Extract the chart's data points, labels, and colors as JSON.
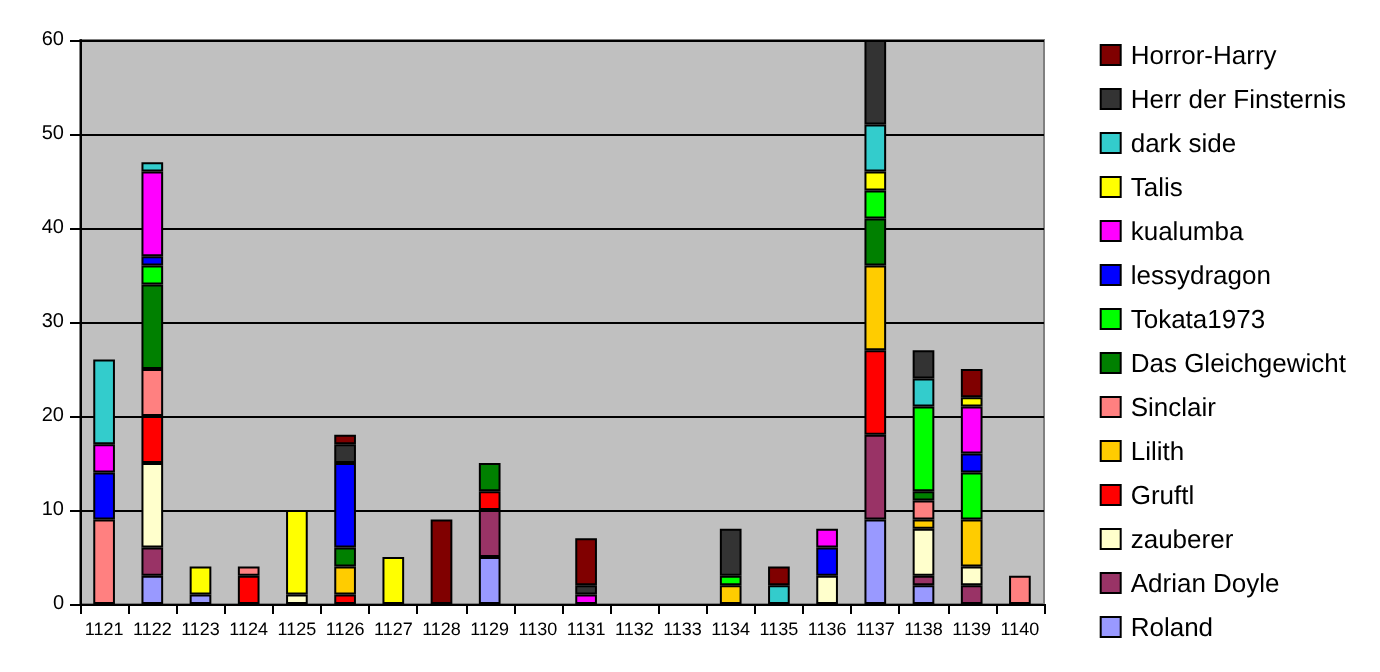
{
  "chart_data": {
    "type": "bar",
    "stacked": true,
    "categories": [
      "1121",
      "1122",
      "1123",
      "1124",
      "1125",
      "1126",
      "1127",
      "1128",
      "1129",
      "1130",
      "1131",
      "1132",
      "1133",
      "1134",
      "1135",
      "1136",
      "1137",
      "1138",
      "1139",
      "1140"
    ],
    "ylim": [
      0,
      60
    ],
    "yticks": [
      0,
      10,
      20,
      30,
      40,
      50,
      60
    ],
    "grid": "y",
    "legend": "right",
    "series": [
      {
        "name": "Roland",
        "color": "#9999ff",
        "values": [
          null,
          3,
          1,
          null,
          null,
          null,
          null,
          null,
          5,
          null,
          null,
          null,
          null,
          null,
          null,
          null,
          9,
          2,
          null,
          null
        ]
      },
      {
        "name": "Adrian Doyle",
        "color": "#993366",
        "values": [
          null,
          3,
          null,
          null,
          null,
          null,
          null,
          null,
          5,
          null,
          null,
          null,
          null,
          null,
          null,
          null,
          9,
          1,
          2,
          null
        ]
      },
      {
        "name": "zauberer",
        "color": "#ffffcc",
        "values": [
          null,
          9,
          null,
          null,
          1,
          null,
          null,
          null,
          null,
          null,
          null,
          null,
          null,
          null,
          null,
          3,
          null,
          5,
          2,
          null
        ]
      },
      {
        "name": "Gruftl",
        "color": "#ff0000",
        "values": [
          null,
          5,
          null,
          3,
          null,
          1,
          null,
          null,
          2,
          null,
          null,
          null,
          null,
          null,
          null,
          null,
          9,
          null,
          null,
          null
        ]
      },
      {
        "name": "Lilith",
        "color": "#ffcc00",
        "values": [
          null,
          null,
          null,
          null,
          null,
          3,
          null,
          null,
          null,
          null,
          null,
          null,
          null,
          2,
          null,
          null,
          9,
          1,
          5,
          null
        ]
      },
      {
        "name": "Sinclair",
        "color": "#ff8080",
        "values": [
          9,
          5,
          null,
          1,
          null,
          null,
          null,
          null,
          null,
          null,
          null,
          null,
          null,
          null,
          null,
          null,
          null,
          2,
          null,
          3
        ]
      },
      {
        "name": "Das Gleichgewicht",
        "color": "#008000",
        "values": [
          null,
          9,
          null,
          null,
          null,
          2,
          null,
          null,
          3,
          null,
          null,
          null,
          null,
          null,
          null,
          null,
          5,
          1,
          null,
          null
        ]
      },
      {
        "name": "Tokata1973",
        "color": "#00ff00",
        "values": [
          null,
          2,
          null,
          null,
          null,
          null,
          null,
          null,
          null,
          null,
          null,
          null,
          null,
          1,
          null,
          null,
          3,
          9,
          5,
          null
        ]
      },
      {
        "name": "lessydragon",
        "color": "#0000ff",
        "values": [
          5,
          1,
          null,
          null,
          null,
          9,
          null,
          null,
          null,
          null,
          null,
          null,
          null,
          null,
          null,
          3,
          null,
          null,
          2,
          null
        ]
      },
      {
        "name": "kualumba",
        "color": "#ff00ff",
        "values": [
          3,
          9,
          null,
          null,
          null,
          null,
          null,
          null,
          null,
          null,
          1,
          null,
          null,
          null,
          null,
          2,
          null,
          null,
          5,
          null
        ]
      },
      {
        "name": "Talis",
        "color": "#ffff00",
        "values": [
          null,
          null,
          3,
          null,
          9,
          null,
          5,
          null,
          null,
          null,
          null,
          null,
          null,
          null,
          null,
          null,
          2,
          null,
          1,
          null
        ]
      },
      {
        "name": "dark side",
        "color": "#33cccc",
        "values": [
          9,
          1,
          null,
          null,
          null,
          null,
          null,
          null,
          null,
          null,
          null,
          null,
          null,
          null,
          2,
          null,
          5,
          3,
          null,
          null
        ]
      },
      {
        "name": "Herr der Finsternis",
        "color": "#333333",
        "values": [
          null,
          null,
          null,
          null,
          null,
          2,
          null,
          null,
          null,
          null,
          1,
          null,
          null,
          5,
          null,
          null,
          9,
          3,
          null,
          null
        ]
      },
      {
        "name": "Horror-Harry",
        "color": "#800000",
        "values": [
          null,
          null,
          null,
          null,
          null,
          1,
          null,
          9,
          null,
          null,
          5,
          null,
          null,
          null,
          2,
          null,
          null,
          null,
          3,
          null
        ]
      }
    ]
  }
}
